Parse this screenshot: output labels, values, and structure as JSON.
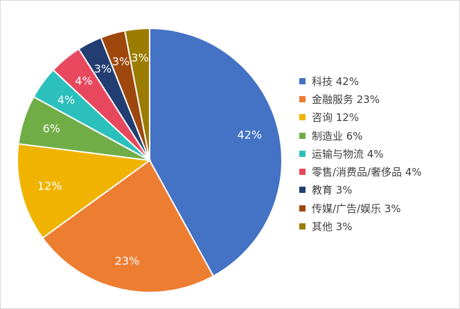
{
  "chart_data": {
    "type": "pie",
    "title": "",
    "start_angle_deg": 0,
    "direction": "clockwise",
    "legend_position": "right",
    "slices": [
      {
        "name": "科技",
        "value": 42,
        "label": "42%",
        "legend": "科技 42%",
        "color": "#4472C4"
      },
      {
        "name": "金融服务",
        "value": 23,
        "label": "23%",
        "legend": "金融服务 23%",
        "color": "#ED7D31"
      },
      {
        "name": "咨询",
        "value": 12,
        "label": "12%",
        "legend": "咨询 12%",
        "color": "#F0B400"
      },
      {
        "name": "制造业",
        "value": 6,
        "label": "6%",
        "legend": "制造业 6%",
        "color": "#70AD47"
      },
      {
        "name": "运输与物流",
        "value": 4,
        "label": "4%",
        "legend": "运输与物流 4%",
        "color": "#2CC0BC"
      },
      {
        "name": "零售/消费品/奢侈品",
        "value": 4,
        "label": "4%",
        "legend": "零售/消费品/奢侈品 4%",
        "color": "#E8485E"
      },
      {
        "name": "教育",
        "value": 3,
        "label": "3%",
        "legend": "教育 3%",
        "color": "#213D72"
      },
      {
        "name": "传媒/广告/娱乐",
        "value": 3,
        "label": "3%",
        "legend": "传媒/广告/娱乐 3%",
        "color": "#9E480E"
      },
      {
        "name": "其他",
        "value": 3,
        "label": "3%",
        "legend": "其他 3%",
        "color": "#9C7C00"
      }
    ]
  }
}
